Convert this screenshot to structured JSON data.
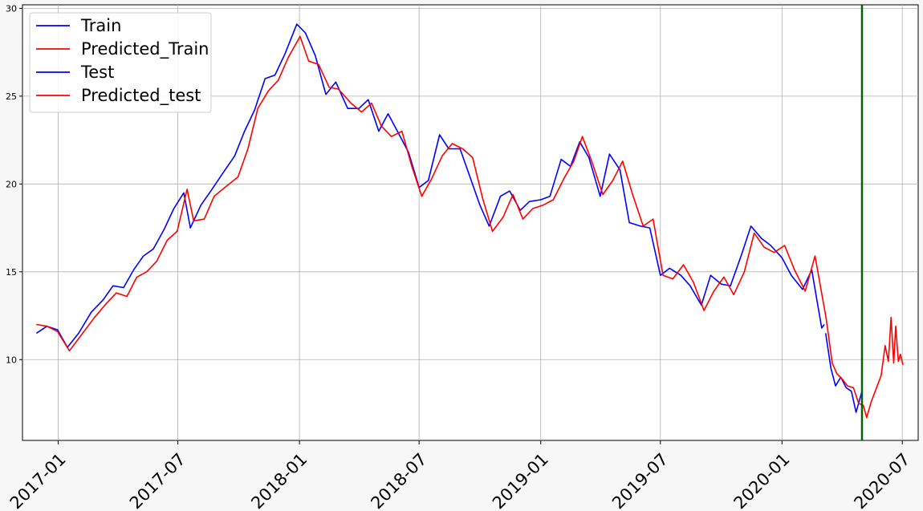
{
  "chart_data": {
    "type": "line",
    "title": "",
    "xlabel": "",
    "ylabel": "",
    "x_range": [
      "2016-11-08",
      "2020-07-25"
    ],
    "ylim": [
      5.4,
      30.2
    ],
    "y_ticks": [
      10,
      15,
      20,
      25,
      30
    ],
    "x_ticks": [
      {
        "date": "2017-01-01",
        "label": "2017-01"
      },
      {
        "date": "2017-07-01",
        "label": "2017-07"
      },
      {
        "date": "2018-01-01",
        "label": "2018-01"
      },
      {
        "date": "2018-07-01",
        "label": "2018-07"
      },
      {
        "date": "2019-01-01",
        "label": "2019-01"
      },
      {
        "date": "2019-07-01",
        "label": "2019-07"
      },
      {
        "date": "2020-01-01",
        "label": "2020-01"
      },
      {
        "date": "2020-07-01",
        "label": "2020-07"
      }
    ],
    "grid": true,
    "legend_position": "top-left",
    "vertical_line": {
      "date": "2020-05-01",
      "color": "#006400"
    },
    "series": [
      {
        "name": "Train",
        "color": "#0000ff",
        "points": [
          [
            "2016-11-29",
            11.5
          ],
          [
            "2016-12-15",
            11.9
          ],
          [
            "2016-12-31",
            11.7
          ],
          [
            "2017-01-15",
            10.7
          ],
          [
            "2017-02-01",
            11.5
          ],
          [
            "2017-02-20",
            12.7
          ],
          [
            "2017-03-10",
            13.4
          ],
          [
            "2017-03-25",
            14.2
          ],
          [
            "2017-04-10",
            14.1
          ],
          [
            "2017-04-25",
            15.1
          ],
          [
            "2017-05-10",
            15.9
          ],
          [
            "2017-05-25",
            16.3
          ],
          [
            "2017-06-10",
            17.4
          ],
          [
            "2017-06-25",
            18.6
          ],
          [
            "2017-07-10",
            19.5
          ],
          [
            "2017-07-20",
            17.5
          ],
          [
            "2017-08-05",
            18.8
          ],
          [
            "2017-08-20",
            19.6
          ],
          [
            "2017-09-05",
            20.5
          ],
          [
            "2017-09-25",
            21.6
          ],
          [
            "2017-10-10",
            23.0
          ],
          [
            "2017-10-25",
            24.2
          ],
          [
            "2017-11-10",
            26.0
          ],
          [
            "2017-11-25",
            26.2
          ],
          [
            "2017-12-10",
            27.4
          ],
          [
            "2017-12-28",
            29.1
          ],
          [
            "2018-01-10",
            28.6
          ],
          [
            "2018-01-25",
            27.3
          ],
          [
            "2018-02-10",
            25.1
          ],
          [
            "2018-02-25",
            25.8
          ],
          [
            "2018-03-15",
            24.3
          ],
          [
            "2018-04-01",
            24.3
          ],
          [
            "2018-04-15",
            24.8
          ],
          [
            "2018-05-01",
            23.0
          ],
          [
            "2018-05-15",
            24.0
          ],
          [
            "2018-06-01",
            22.8
          ],
          [
            "2018-06-15",
            21.8
          ],
          [
            "2018-07-01",
            19.8
          ],
          [
            "2018-07-15",
            20.2
          ],
          [
            "2018-08-01",
            22.8
          ],
          [
            "2018-08-15",
            22.0
          ],
          [
            "2018-09-01",
            22.0
          ],
          [
            "2018-09-15",
            20.5
          ],
          [
            "2018-10-01",
            18.8
          ],
          [
            "2018-10-15",
            17.6
          ],
          [
            "2018-11-01",
            19.3
          ],
          [
            "2018-11-15",
            19.6
          ],
          [
            "2018-12-01",
            18.5
          ],
          [
            "2018-12-15",
            19.0
          ],
          [
            "2019-01-01",
            19.1
          ],
          [
            "2019-01-15",
            19.3
          ],
          [
            "2019-02-01",
            21.4
          ],
          [
            "2019-02-15",
            21.0
          ],
          [
            "2019-03-01",
            22.4
          ],
          [
            "2019-03-15",
            21.5
          ],
          [
            "2019-04-01",
            19.3
          ],
          [
            "2019-04-15",
            21.7
          ],
          [
            "2019-05-01",
            20.8
          ],
          [
            "2019-05-15",
            17.8
          ],
          [
            "2019-06-01",
            17.6
          ],
          [
            "2019-06-15",
            17.5
          ],
          [
            "2019-07-01",
            14.8
          ],
          [
            "2019-07-15",
            15.2
          ],
          [
            "2019-08-01",
            14.8
          ],
          [
            "2019-08-15",
            14.2
          ],
          [
            "2019-09-01",
            13.1
          ],
          [
            "2019-09-15",
            14.8
          ],
          [
            "2019-10-01",
            14.3
          ],
          [
            "2019-10-15",
            14.2
          ],
          [
            "2019-11-01",
            16.0
          ],
          [
            "2019-11-15",
            17.6
          ],
          [
            "2019-12-01",
            16.9
          ],
          [
            "2019-12-15",
            16.5
          ],
          [
            "2020-01-01",
            15.8
          ],
          [
            "2020-01-15",
            14.8
          ],
          [
            "2020-02-01",
            14.0
          ],
          [
            "2020-02-15",
            15.1
          ],
          [
            "2020-03-01",
            11.8
          ],
          [
            "2020-03-05",
            12.0
          ]
        ]
      },
      {
        "name": "Predicted_Train",
        "color": "#ff0000",
        "points": [
          [
            "2016-11-29",
            12.0
          ],
          [
            "2016-12-15",
            11.9
          ],
          [
            "2016-12-31",
            11.6
          ],
          [
            "2017-01-18",
            10.5
          ],
          [
            "2017-02-05",
            11.4
          ],
          [
            "2017-02-25",
            12.4
          ],
          [
            "2017-03-15",
            13.2
          ],
          [
            "2017-03-30",
            13.8
          ],
          [
            "2017-04-15",
            13.6
          ],
          [
            "2017-04-30",
            14.7
          ],
          [
            "2017-05-15",
            15.0
          ],
          [
            "2017-05-30",
            15.6
          ],
          [
            "2017-06-15",
            16.8
          ],
          [
            "2017-06-30",
            17.3
          ],
          [
            "2017-07-15",
            19.7
          ],
          [
            "2017-07-25",
            17.9
          ],
          [
            "2017-08-10",
            18.0
          ],
          [
            "2017-08-25",
            19.3
          ],
          [
            "2017-09-10",
            19.8
          ],
          [
            "2017-09-30",
            20.4
          ],
          [
            "2017-10-15",
            22.0
          ],
          [
            "2017-10-30",
            24.3
          ],
          [
            "2017-11-15",
            25.3
          ],
          [
            "2017-11-30",
            25.9
          ],
          [
            "2017-12-15",
            27.2
          ],
          [
            "2018-01-02",
            28.4
          ],
          [
            "2018-01-15",
            27.0
          ],
          [
            "2018-01-30",
            26.8
          ],
          [
            "2018-02-15",
            25.5
          ],
          [
            "2018-03-01",
            25.4
          ],
          [
            "2018-03-20",
            24.6
          ],
          [
            "2018-04-05",
            24.1
          ],
          [
            "2018-04-20",
            24.6
          ],
          [
            "2018-05-05",
            23.3
          ],
          [
            "2018-05-20",
            22.7
          ],
          [
            "2018-06-05",
            23.0
          ],
          [
            "2018-06-20",
            21.0
          ],
          [
            "2018-07-05",
            19.3
          ],
          [
            "2018-07-20",
            20.3
          ],
          [
            "2018-08-05",
            21.6
          ],
          [
            "2018-08-20",
            22.3
          ],
          [
            "2018-09-05",
            22.0
          ],
          [
            "2018-09-20",
            21.5
          ],
          [
            "2018-10-05",
            19.2
          ],
          [
            "2018-10-20",
            17.3
          ],
          [
            "2018-11-05",
            18.1
          ],
          [
            "2018-11-20",
            19.4
          ],
          [
            "2018-12-05",
            18.0
          ],
          [
            "2018-12-20",
            18.6
          ],
          [
            "2019-01-05",
            18.8
          ],
          [
            "2019-01-20",
            19.1
          ],
          [
            "2019-02-05",
            20.3
          ],
          [
            "2019-02-20",
            21.3
          ],
          [
            "2019-03-05",
            22.7
          ],
          [
            "2019-03-20",
            21.2
          ],
          [
            "2019-04-05",
            19.4
          ],
          [
            "2019-04-20",
            20.2
          ],
          [
            "2019-05-05",
            21.3
          ],
          [
            "2019-05-20",
            19.4
          ],
          [
            "2019-06-05",
            17.6
          ],
          [
            "2019-06-20",
            18.0
          ],
          [
            "2019-07-05",
            14.8
          ],
          [
            "2019-07-20",
            14.6
          ],
          [
            "2019-08-05",
            15.4
          ],
          [
            "2019-08-20",
            14.4
          ],
          [
            "2019-09-05",
            12.8
          ],
          [
            "2019-09-20",
            13.9
          ],
          [
            "2019-10-05",
            14.7
          ],
          [
            "2019-10-20",
            13.7
          ],
          [
            "2019-11-05",
            15.0
          ],
          [
            "2019-11-20",
            17.2
          ],
          [
            "2019-12-05",
            16.4
          ],
          [
            "2019-12-20",
            16.1
          ],
          [
            "2020-01-05",
            16.5
          ],
          [
            "2020-01-20",
            15.1
          ],
          [
            "2020-02-05",
            13.9
          ],
          [
            "2020-02-20",
            15.9
          ],
          [
            "2020-03-08",
            12.3
          ]
        ]
      },
      {
        "name": "Test",
        "color": "#0000ff",
        "points": [
          [
            "2020-03-07",
            11.5
          ],
          [
            "2020-03-15",
            9.5
          ],
          [
            "2020-03-22",
            8.5
          ],
          [
            "2020-03-30",
            9.0
          ],
          [
            "2020-04-07",
            8.4
          ],
          [
            "2020-04-15",
            8.2
          ],
          [
            "2020-04-22",
            7.0
          ],
          [
            "2020-04-28",
            7.8
          ],
          [
            "2020-05-01",
            8.2
          ]
        ]
      },
      {
        "name": "Predicted_test",
        "color": "#ff0000",
        "points": [
          [
            "2020-03-08",
            12.3
          ],
          [
            "2020-03-17",
            9.8
          ],
          [
            "2020-03-24",
            9.2
          ],
          [
            "2020-04-01",
            8.9
          ],
          [
            "2020-04-09",
            8.5
          ],
          [
            "2020-04-18",
            8.4
          ],
          [
            "2020-04-26",
            7.5
          ],
          [
            "2020-05-03",
            7.4
          ],
          [
            "2020-05-08",
            6.7
          ],
          [
            "2020-05-15",
            7.6
          ],
          [
            "2020-05-23",
            8.4
          ],
          [
            "2020-05-30",
            9.1
          ],
          [
            "2020-06-05",
            10.8
          ],
          [
            "2020-06-10",
            9.9
          ],
          [
            "2020-06-14",
            12.4
          ],
          [
            "2020-06-18",
            9.8
          ],
          [
            "2020-06-21",
            11.9
          ],
          [
            "2020-06-25",
            9.9
          ],
          [
            "2020-06-28",
            10.3
          ],
          [
            "2020-07-02",
            9.7
          ]
        ]
      }
    ]
  }
}
